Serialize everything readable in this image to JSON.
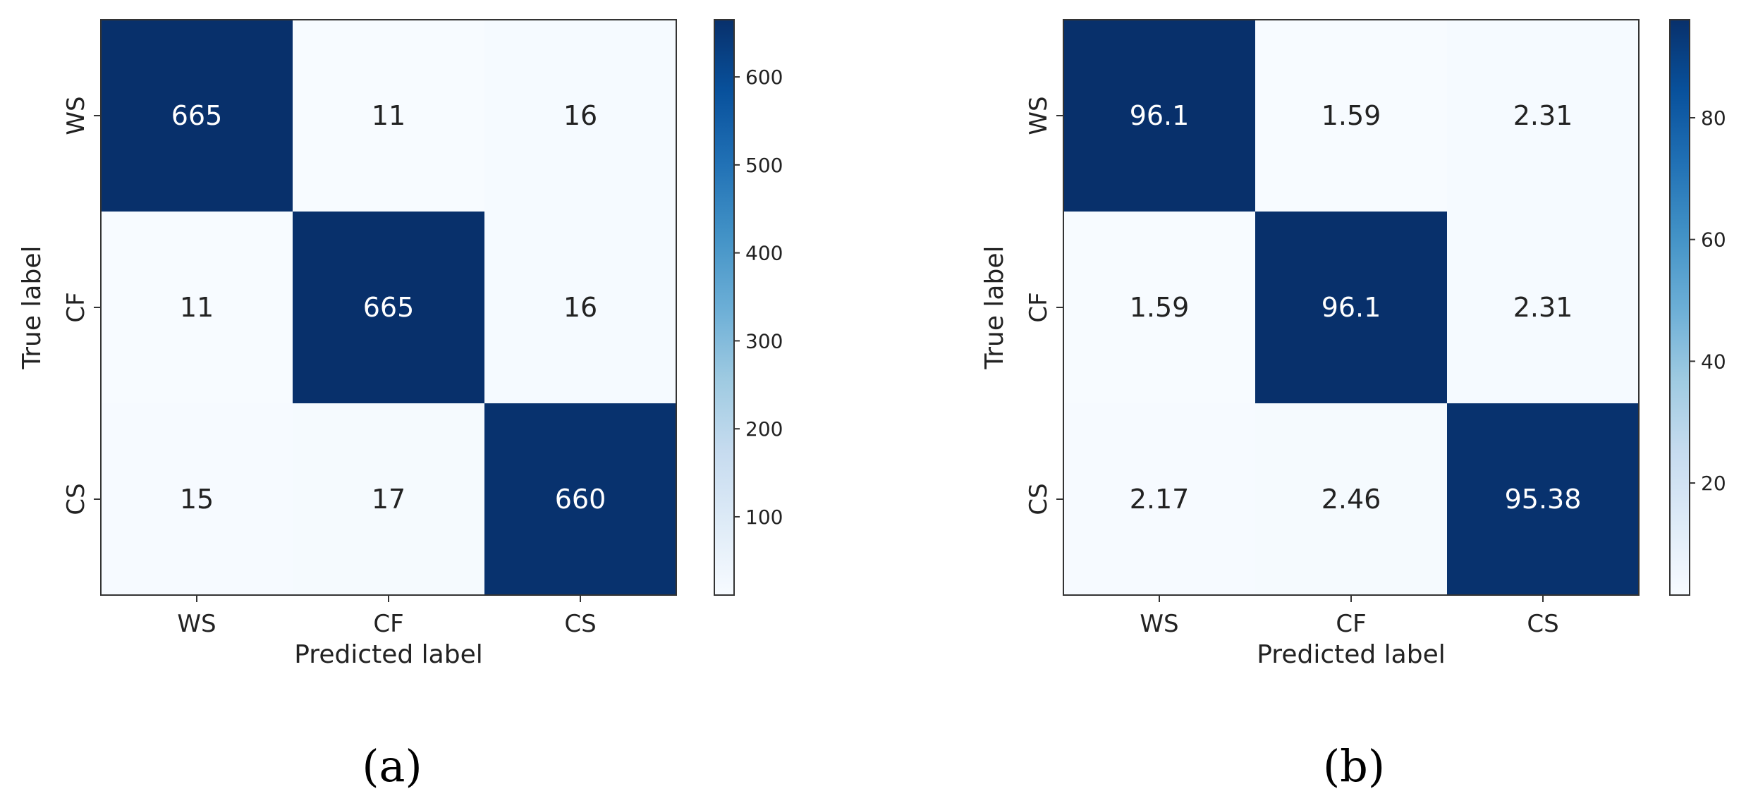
{
  "chart_data": [
    {
      "type": "heatmap",
      "panel_label": "(a)",
      "x_categories": [
        "WS",
        "CF",
        "CS"
      ],
      "y_categories": [
        "WS",
        "CF",
        "CS"
      ],
      "matrix": [
        [
          665,
          11,
          16
        ],
        [
          11,
          665,
          16
        ],
        [
          15,
          17,
          660
        ]
      ],
      "cell_labels": [
        [
          "665",
          "11",
          "16"
        ],
        [
          "11",
          "665",
          "16"
        ],
        [
          "15",
          "17",
          "660"
        ]
      ],
      "xlabel": "Predicted label",
      "ylabel": "True label",
      "colorbar": {
        "range": [
          11,
          665
        ],
        "ticks": [
          100,
          200,
          300,
          400,
          500,
          600
        ]
      },
      "colormap": {
        "low": "#f7fbff",
        "high": "#08306b"
      }
    },
    {
      "type": "heatmap",
      "panel_label": "(b)",
      "x_categories": [
        "WS",
        "CF",
        "CS"
      ],
      "y_categories": [
        "WS",
        "CF",
        "CS"
      ],
      "matrix": [
        [
          96.1,
          1.59,
          2.31
        ],
        [
          1.59,
          96.1,
          2.31
        ],
        [
          2.17,
          2.46,
          95.38
        ]
      ],
      "cell_labels": [
        [
          "96.1",
          "1.59",
          "2.31"
        ],
        [
          "1.59",
          "96.1",
          "2.31"
        ],
        [
          "2.17",
          "2.46",
          "95.38"
        ]
      ],
      "xlabel": "Predicted label",
      "ylabel": "True label",
      "colorbar": {
        "range": [
          1.59,
          96.1
        ],
        "ticks": [
          20,
          40,
          60,
          80
        ]
      },
      "colormap": {
        "low": "#f7fbff",
        "high": "#08306b"
      }
    }
  ]
}
